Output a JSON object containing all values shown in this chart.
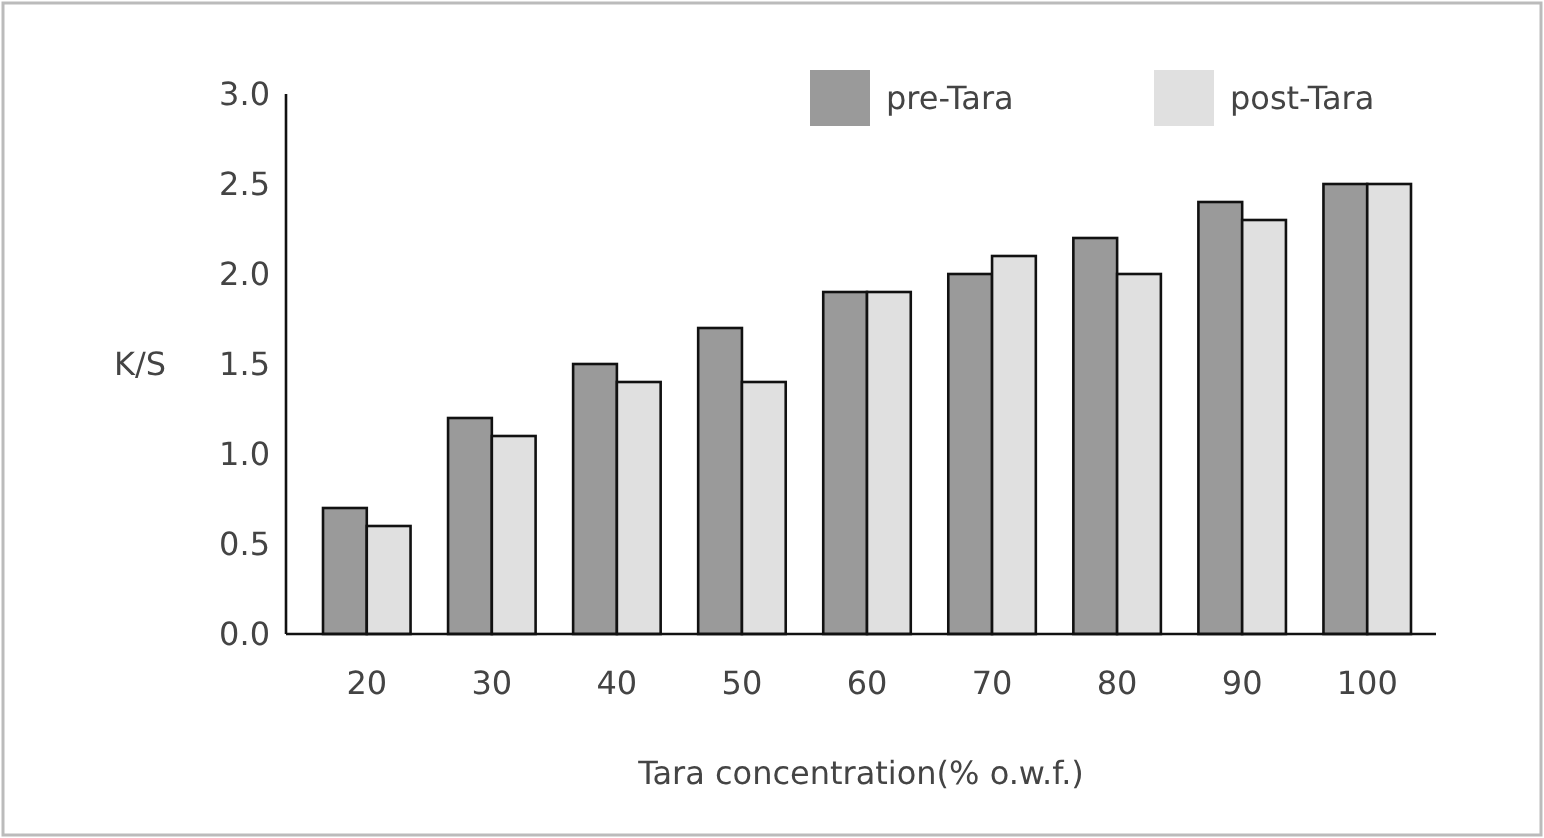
{
  "chart_data": {
    "type": "bar",
    "xlabel": "Tara concentration(% o.w.f.)",
    "ylabel": "K/S",
    "categories": [
      "20",
      "30",
      "40",
      "50",
      "60",
      "70",
      "80",
      "90",
      "100"
    ],
    "series": [
      {
        "name": "pre-Tara",
        "color": "#9a9a9a",
        "values": [
          0.7,
          1.2,
          1.5,
          1.7,
          1.9,
          2.0,
          2.2,
          2.4,
          2.5
        ]
      },
      {
        "name": "post-Tara",
        "color": "#e0e0e0",
        "values": [
          0.6,
          1.1,
          1.4,
          1.4,
          1.9,
          2.1,
          2.0,
          2.3,
          2.5
        ]
      }
    ],
    "ylim": [
      0,
      3
    ],
    "yticks": [
      {
        "value": 0,
        "label": "0.0"
      },
      {
        "value": 0.5,
        "label": "0.5"
      },
      {
        "value": 1,
        "label": "1.0"
      },
      {
        "value": 1.5,
        "label": "1.5"
      },
      {
        "value": 2,
        "label": "2.0"
      },
      {
        "value": 2.5,
        "label": "2.5"
      },
      {
        "value": 3,
        "label": "3.0"
      }
    ],
    "grid": false,
    "legend": "top right"
  }
}
